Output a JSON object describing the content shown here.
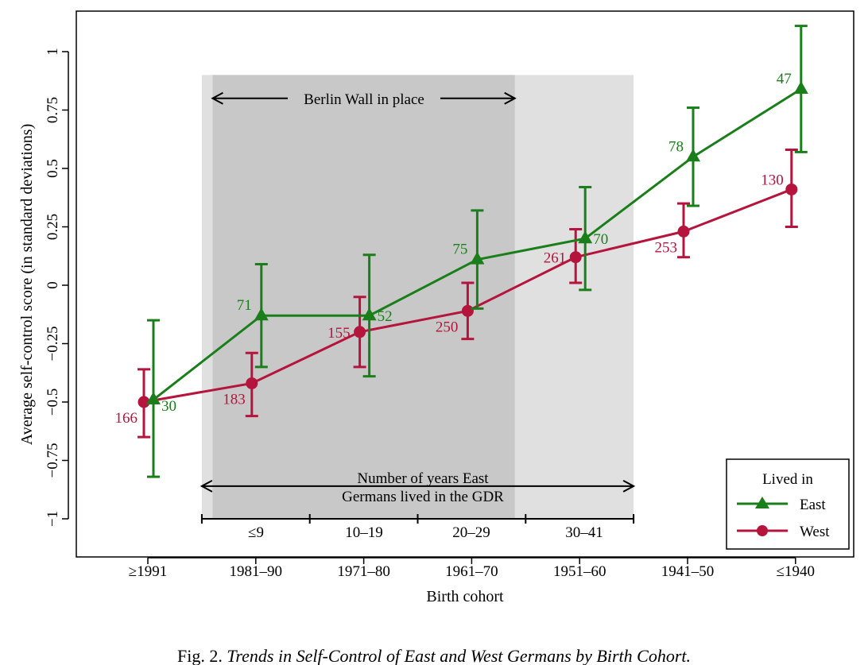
{
  "chart_data": {
    "type": "line",
    "title": "",
    "xlabel": "Birth cohort",
    "ylabel": "Average self-control score (in standard deviations)",
    "ylim": [
      -1.1,
      1.17
    ],
    "yticks": [
      "1",
      "0.75",
      "0.5",
      "0.25",
      "0",
      "−0.25",
      "−0.5",
      "−0.75",
      "−1"
    ],
    "ytick_values": [
      1,
      0.75,
      0.5,
      0.25,
      0,
      -0.25,
      -0.5,
      -0.75,
      -1
    ],
    "categories": [
      "≥1991",
      "1981–90",
      "1971–80",
      "1961–70",
      "1951–60",
      "1941–50",
      "≤1940"
    ],
    "series": [
      {
        "name": "East",
        "color": "#1a7f1a",
        "marker": "triangle",
        "values": [
          -0.49,
          -0.13,
          -0.13,
          0.11,
          0.2,
          0.55,
          0.84
        ],
        "ci_low": [
          -0.82,
          -0.35,
          -0.39,
          -0.1,
          -0.02,
          0.34,
          0.57
        ],
        "ci_high": [
          -0.15,
          0.09,
          0.13,
          0.32,
          0.42,
          0.76,
          1.11
        ],
        "n_labels": [
          "30",
          "71",
          "52",
          "75",
          "70",
          "78",
          "47"
        ]
      },
      {
        "name": "West",
        "color": "#b5143c",
        "marker": "circle",
        "values": [
          -0.5,
          -0.42,
          -0.2,
          -0.11,
          0.12,
          0.23,
          0.41
        ],
        "ci_low": [
          -0.65,
          -0.56,
          -0.35,
          -0.23,
          0.01,
          0.12,
          0.25
        ],
        "ci_high": [
          -0.36,
          -0.29,
          -0.05,
          0.01,
          0.24,
          0.35,
          0.58
        ],
        "n_labels": [
          "166",
          "183",
          "155",
          "250",
          "261",
          "253",
          "130"
        ]
      }
    ],
    "shaded_regions": [
      {
        "name": "light",
        "from_category": 0.5,
        "to_category": 4.5,
        "ymin": -1,
        "ymax": 0.9,
        "color": "#e0e0e0"
      },
      {
        "name": "dark",
        "from_category": 0.6,
        "to_category": 3.4,
        "ymin": -1,
        "ymax": 0.9,
        "color": "#c8c8c8"
      }
    ],
    "annotations": {
      "berlin_wall": "Berlin Wall in place",
      "gdr_years_line1": "Number of years East",
      "gdr_years_line2": "Germans lived in the GDR",
      "gdr_bins": [
        "≤9",
        "10–19",
        "20–29",
        "30–41"
      ]
    },
    "legend": {
      "title": "Lived in",
      "position": "bottom-right",
      "entries": [
        "East",
        "West"
      ]
    }
  },
  "caption": {
    "prefix": "Fig. 2. ",
    "title": "Trends in Self-Control of East and West Germans by Birth Cohort."
  }
}
